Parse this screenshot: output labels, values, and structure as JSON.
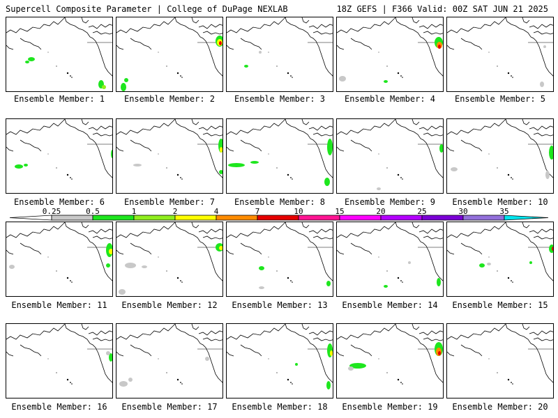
{
  "header": {
    "title_left": "Supercell Composite Parameter | College of DuPage NEXLAB",
    "title_right": "18Z GEFS | F366 Valid: 00Z SAT JUN 21 2025"
  },
  "colors": {
    "map_outline": "#000000",
    "levels": [
      "#c8c8c8",
      "#1ee61e",
      "#90ee1e",
      "#ffff00",
      "#ff8c00",
      "#e60000",
      "#ff1493",
      "#ff00ff",
      "#b400ff",
      "#7b00d6",
      "#9370db",
      "#00e5ee"
    ]
  },
  "colorbar": {
    "labels": [
      "0.25",
      "0.5",
      "1",
      "2",
      "4",
      "7",
      "10",
      "15",
      "20",
      "25",
      "30",
      "35"
    ]
  },
  "members": [
    {
      "label": "Ensemble Member: 1"
    },
    {
      "label": "Ensemble Member: 2"
    },
    {
      "label": "Ensemble Member: 3"
    },
    {
      "label": "Ensemble Member: 4"
    },
    {
      "label": "Ensemble Member: 5"
    },
    {
      "label": "Ensemble Member: 6"
    },
    {
      "label": "Ensemble Member: 7"
    },
    {
      "label": "Ensemble Member: 8"
    },
    {
      "label": "Ensemble Member: 9"
    },
    {
      "label": "Ensemble Member: 10"
    },
    {
      "label": "Ensemble Member: 11"
    },
    {
      "label": "Ensemble Member: 12"
    },
    {
      "label": "Ensemble Member: 13"
    },
    {
      "label": "Ensemble Member: 14"
    },
    {
      "label": "Ensemble Member: 15"
    },
    {
      "label": "Ensemble Member: 16"
    },
    {
      "label": "Ensemble Member: 17"
    },
    {
      "label": "Ensemble Member: 18"
    },
    {
      "label": "Ensemble Member: 19"
    },
    {
      "label": "Ensemble Member: 20"
    }
  ]
}
